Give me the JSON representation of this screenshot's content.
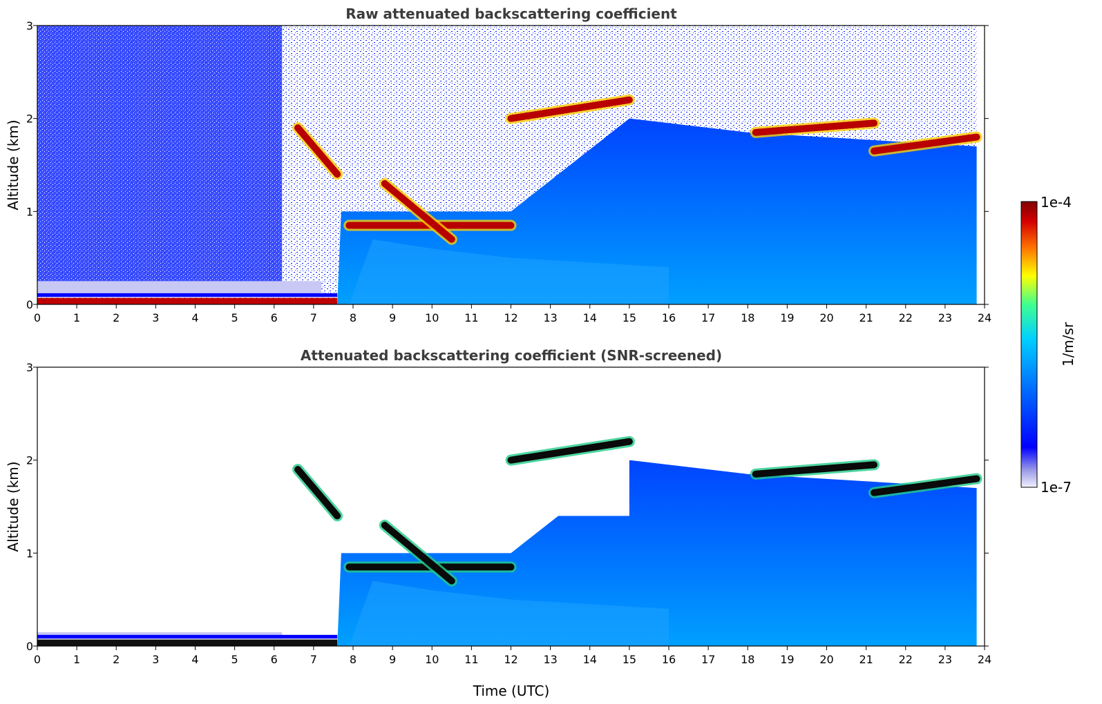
{
  "chart_data": [
    {
      "type": "heatmap",
      "title": "Raw attenuated backscattering coefficient",
      "xlabel": "",
      "ylabel": "Altitude (km)",
      "xlim": [
        0,
        24
      ],
      "ylim": [
        0,
        3
      ],
      "x_ticks": [
        "0",
        "1",
        "2",
        "3",
        "4",
        "5",
        "6",
        "7",
        "8",
        "9",
        "10",
        "11",
        "12",
        "13",
        "14",
        "15",
        "16",
        "17",
        "18",
        "19",
        "20",
        "21",
        "22",
        "23",
        "24"
      ],
      "y_ticks": [
        "0",
        "1",
        "2",
        "3"
      ],
      "grid": false,
      "features": {
        "surface_layer": {
          "x": [
            0,
            7.6
          ],
          "altitude_km": 0.07
        },
        "cloud_layers": [
          {
            "x": [
              6.6,
              7.6
            ],
            "altitude_km": [
              1.9,
              1.4
            ]
          },
          {
            "x": [
              7.9,
              12.0
            ],
            "altitude_km": [
              0.85,
              0.85
            ]
          },
          {
            "x": [
              8.8,
              10.5
            ],
            "altitude_km": [
              1.3,
              0.7
            ]
          },
          {
            "x": [
              12.0,
              15.0
            ],
            "altitude_km": [
              2.0,
              2.2
            ]
          },
          {
            "x": [
              18.2,
              21.2
            ],
            "altitude_km": [
              1.85,
              1.95
            ]
          },
          {
            "x": [
              21.2,
              23.8
            ],
            "altitude_km": [
              1.65,
              1.8
            ]
          }
        ],
        "boundary_layer_top_km": [
          {
            "x": 7.7,
            "y": 1.0
          },
          {
            "x": 12,
            "y": 1.0
          },
          {
            "x": 15,
            "y": 2.0
          },
          {
            "x": 18,
            "y": 1.85
          },
          {
            "x": 23.8,
            "y": 1.7
          }
        ],
        "data_end_x": 23.8
      }
    },
    {
      "type": "heatmap",
      "title": "Attenuated backscattering coefficient (SNR-screened)",
      "xlabel": "Time (UTC)",
      "ylabel": "Altitude (km)",
      "xlim": [
        0,
        24
      ],
      "ylim": [
        0,
        3
      ],
      "x_ticks": [
        "0",
        "1",
        "2",
        "3",
        "4",
        "5",
        "6",
        "7",
        "8",
        "9",
        "10",
        "11",
        "12",
        "13",
        "14",
        "15",
        "16",
        "17",
        "18",
        "19",
        "20",
        "21",
        "22",
        "23",
        "24"
      ],
      "y_ticks": [
        "0",
        "1",
        "2",
        "3"
      ],
      "grid": false,
      "features": {
        "surface_layer": {
          "x": [
            0,
            7.6
          ],
          "altitude_km": 0.07
        },
        "screened_out_regions": [
          {
            "x": [
              0,
              6.2
            ],
            "altitude_km": [
              0.15,
              3
            ]
          },
          {
            "x": [
              7.7,
              15.0
            ],
            "altitude_km": [
              1.4,
              3
            ]
          },
          {
            "x": [
              15.0,
              24
            ],
            "altitude_km": [
              2.0,
              3
            ]
          }
        ],
        "data_end_x": 23.8
      }
    }
  ],
  "colorbar": {
    "label": "1/m/sr",
    "min_label": "1e-7",
    "max_label": "1e-4",
    "scale": "log",
    "colormap": [
      "#e8e8f8",
      "#9a9ae8",
      "#0000ff",
      "#0066ff",
      "#00ccff",
      "#33ff99",
      "#ffff00",
      "#ff6600",
      "#cc0000",
      "#800000"
    ]
  }
}
